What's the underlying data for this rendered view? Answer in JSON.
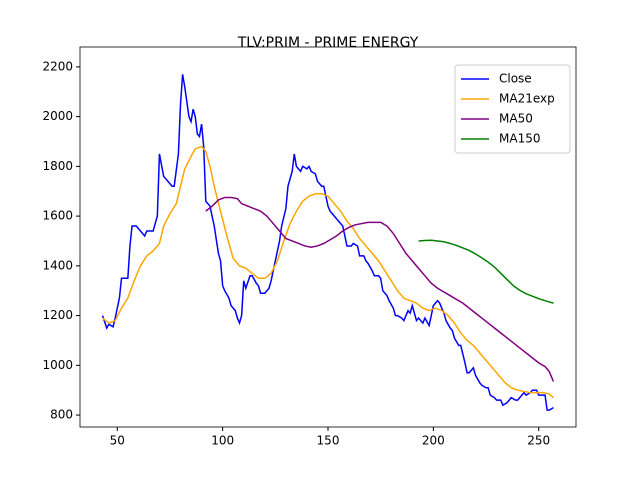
{
  "chart_data": {
    "type": "line",
    "title": "TLV:PRIM - PRIME ENERGY",
    "xlim": [
      32.3,
      267.7
    ],
    "ylim": [
      752,
      2280
    ],
    "xticks": [
      50,
      100,
      150,
      200,
      250
    ],
    "yticks": [
      800,
      1000,
      1200,
      1400,
      1600,
      1800,
      2000,
      2200
    ],
    "legend": "upper right",
    "series": [
      {
        "name": "Close",
        "color": "#0000ff",
        "x": [
          43,
          45,
          46,
          48,
          49,
          51,
          52,
          55,
          56,
          57,
          59,
          61,
          63,
          64,
          67,
          69,
          70,
          72,
          74,
          76,
          77,
          79,
          80,
          81,
          82,
          84,
          85,
          86,
          87,
          88,
          89,
          90,
          91,
          92,
          94,
          95,
          96,
          98,
          99,
          100,
          101,
          103,
          104,
          106,
          107,
          108,
          109,
          110,
          111,
          113,
          114,
          116,
          117,
          118,
          120,
          122,
          123,
          125,
          127,
          128,
          130,
          131,
          133,
          134,
          135,
          137,
          138,
          140,
          141,
          142,
          144,
          145,
          147,
          148,
          150,
          151,
          152,
          154,
          155,
          157,
          158,
          159,
          161,
          162,
          164,
          165,
          167,
          168,
          169,
          171,
          172,
          174,
          175,
          176,
          178,
          179,
          181,
          182,
          183,
          185,
          186,
          188,
          189,
          190,
          192,
          193,
          195,
          196,
          198,
          199,
          200,
          202,
          203,
          205,
          206,
          208,
          209,
          210,
          212,
          213,
          215,
          216,
          217,
          219,
          220,
          222,
          223,
          225,
          226,
          227,
          229,
          230,
          232,
          233,
          235,
          236,
          237,
          239,
          240,
          242,
          243,
          244,
          246,
          247,
          249,
          250,
          252,
          253,
          254,
          255,
          257
        ],
        "values": [
          1200,
          1150,
          1165,
          1155,
          1190,
          1270,
          1350,
          1350,
          1480,
          1560,
          1560,
          1540,
          1520,
          1540,
          1540,
          1600,
          1850,
          1760,
          1740,
          1720,
          1720,
          1850,
          2050,
          2170,
          2120,
          2000,
          1980,
          2030,
          2000,
          1930,
          1920,
          1970,
          1880,
          1660,
          1640,
          1600,
          1560,
          1450,
          1420,
          1320,
          1300,
          1270,
          1240,
          1220,
          1190,
          1170,
          1200,
          1340,
          1310,
          1360,
          1360,
          1330,
          1320,
          1290,
          1290,
          1310,
          1340,
          1420,
          1500,
          1560,
          1630,
          1720,
          1780,
          1850,
          1800,
          1780,
          1800,
          1790,
          1800,
          1780,
          1770,
          1740,
          1720,
          1720,
          1640,
          1620,
          1610,
          1590,
          1580,
          1560,
          1520,
          1480,
          1480,
          1490,
          1480,
          1440,
          1440,
          1420,
          1410,
          1380,
          1360,
          1360,
          1350,
          1300,
          1280,
          1260,
          1230,
          1200,
          1200,
          1190,
          1180,
          1220,
          1210,
          1240,
          1180,
          1190,
          1170,
          1190,
          1160,
          1200,
          1240,
          1260,
          1250,
          1210,
          1180,
          1150,
          1140,
          1110,
          1080,
          1080,
          1010,
          970,
          970,
          990,
          960,
          930,
          920,
          910,
          910,
          880,
          870,
          860,
          860,
          840,
          850,
          860,
          870,
          860,
          860,
          880,
          890,
          880,
          890,
          900,
          900,
          880,
          880,
          880,
          820,
          820,
          830
        ]
      },
      {
        "name": "MA21exp",
        "color": "#ffa500",
        "x": [
          43,
          46,
          49,
          52,
          55,
          58,
          61,
          64,
          67,
          70,
          72,
          75,
          78,
          80,
          82,
          85,
          87,
          90,
          92,
          94,
          96,
          99,
          102,
          105,
          108,
          111,
          114,
          117,
          120,
          123,
          126,
          129,
          132,
          135,
          138,
          141,
          144,
          147,
          150,
          153,
          156,
          159,
          162,
          165,
          168,
          171,
          174,
          177,
          180,
          183,
          186,
          189,
          192,
          195,
          198,
          201,
          204,
          207,
          210,
          213,
          216,
          219,
          222,
          225,
          228,
          231,
          234,
          237,
          240,
          243,
          246,
          249,
          252,
          255,
          257
        ],
        "values": [
          1190,
          1170,
          1180,
          1230,
          1270,
          1340,
          1400,
          1440,
          1460,
          1490,
          1560,
          1610,
          1650,
          1720,
          1790,
          1840,
          1870,
          1880,
          1860,
          1800,
          1720,
          1620,
          1520,
          1430,
          1400,
          1390,
          1370,
          1350,
          1350,
          1370,
          1420,
          1500,
          1570,
          1620,
          1660,
          1680,
          1690,
          1690,
          1680,
          1650,
          1620,
          1580,
          1550,
          1510,
          1480,
          1450,
          1420,
          1380,
          1340,
          1300,
          1270,
          1260,
          1250,
          1230,
          1220,
          1230,
          1220,
          1200,
          1170,
          1130,
          1100,
          1080,
          1050,
          1020,
          990,
          960,
          930,
          910,
          900,
          895,
          890,
          890,
          890,
          885,
          870
        ]
      },
      {
        "name": "MA50",
        "color": "#800080",
        "x": [
          92,
          95,
          98,
          101,
          104,
          107,
          109,
          112,
          115,
          118,
          121,
          124,
          127,
          130,
          133,
          136,
          139,
          142,
          145,
          148,
          151,
          154,
          157,
          160,
          163,
          166,
          169,
          172,
          175,
          178,
          181,
          184,
          187,
          190,
          193,
          196,
          199,
          202,
          205,
          208,
          211,
          214,
          217,
          220,
          223,
          226,
          229,
          232,
          235,
          238,
          241,
          244,
          247,
          250,
          253,
          255,
          257
        ],
        "values": [
          1620,
          1640,
          1665,
          1675,
          1675,
          1670,
          1650,
          1640,
          1630,
          1620,
          1600,
          1570,
          1540,
          1510,
          1500,
          1490,
          1480,
          1475,
          1480,
          1490,
          1505,
          1520,
          1540,
          1555,
          1565,
          1570,
          1575,
          1575,
          1575,
          1560,
          1530,
          1490,
          1450,
          1420,
          1390,
          1360,
          1330,
          1310,
          1295,
          1280,
          1265,
          1250,
          1230,
          1210,
          1190,
          1170,
          1150,
          1130,
          1110,
          1090,
          1070,
          1050,
          1030,
          1010,
          995,
          975,
          935
        ]
      },
      {
        "name": "MA150",
        "color": "#008000",
        "x": [
          193,
          196,
          199,
          202,
          205,
          208,
          211,
          214,
          217,
          220,
          223,
          226,
          229,
          232,
          235,
          238,
          241,
          244,
          247,
          250,
          253,
          255,
          257
        ],
        "values": [
          1500,
          1502,
          1503,
          1500,
          1497,
          1490,
          1482,
          1472,
          1462,
          1448,
          1432,
          1415,
          1395,
          1370,
          1345,
          1320,
          1302,
          1288,
          1278,
          1268,
          1260,
          1255,
          1250
        ]
      }
    ]
  }
}
